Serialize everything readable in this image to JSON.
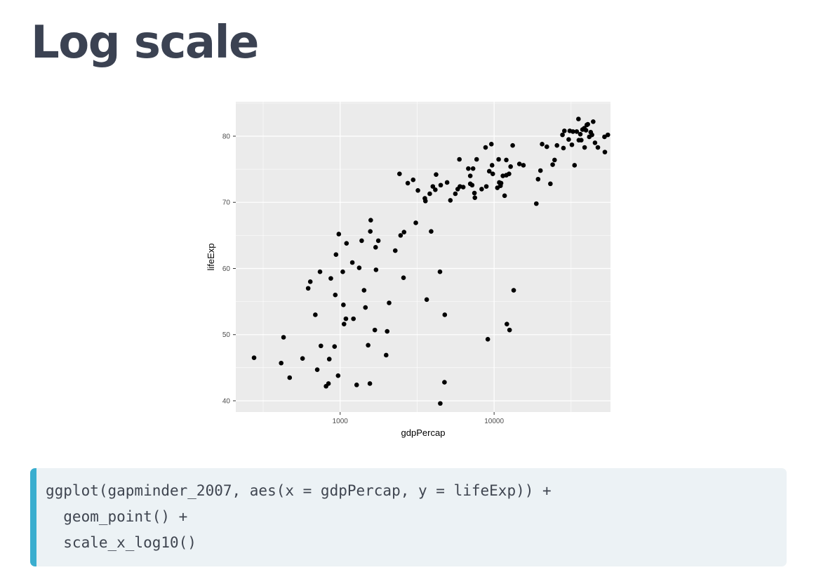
{
  "slide": {
    "title": "Log scale"
  },
  "code": {
    "lines": [
      "ggplot(gapminder_2007, aes(x = gdpPercap, y = lifeExp)) +",
      "  geom_point() +",
      "  scale_x_log10()"
    ]
  },
  "colors": {
    "panel_bg": "#ebebeb",
    "grid": "#ffffff",
    "point": "#000000",
    "code_accent": "#3aaecf",
    "code_bg": "#ecf2f5"
  },
  "chart_data": {
    "type": "scatter",
    "xlabel": "gdpPercap",
    "ylabel": "lifeExp",
    "x_scale": "log10",
    "xlim": [
      210,
      57000
    ],
    "ylim": [
      38.3,
      85.2
    ],
    "x_ticks": [
      1000,
      10000
    ],
    "x_tick_labels": [
      "1000",
      "10000"
    ],
    "y_ticks": [
      40,
      50,
      60,
      70,
      80
    ],
    "y_tick_labels": [
      "40",
      "50",
      "60",
      "70",
      "80"
    ],
    "grid": true,
    "legend": "none",
    "points": [
      [
        276,
        46.5
      ],
      [
        414,
        45.7
      ],
      [
        429,
        49.6
      ],
      [
        470,
        43.5
      ],
      [
        570,
        46.4
      ],
      [
        620,
        57.0
      ],
      [
        640,
        58.0
      ],
      [
        690,
        53.0
      ],
      [
        710,
        44.7
      ],
      [
        740,
        59.5
      ],
      [
        750,
        48.3
      ],
      [
        810,
        42.2
      ],
      [
        840,
        42.6
      ],
      [
        850,
        46.3
      ],
      [
        870,
        58.5
      ],
      [
        920,
        48.2
      ],
      [
        930,
        56.0
      ],
      [
        940,
        62.1
      ],
      [
        970,
        43.8
      ],
      [
        980,
        65.2
      ],
      [
        1040,
        59.5
      ],
      [
        1050,
        54.5
      ],
      [
        1060,
        51.6
      ],
      [
        1090,
        52.4
      ],
      [
        1100,
        63.8
      ],
      [
        1200,
        60.9
      ],
      [
        1220,
        52.4
      ],
      [
        1280,
        42.4
      ],
      [
        1330,
        60.1
      ],
      [
        1380,
        64.2
      ],
      [
        1430,
        56.7
      ],
      [
        1460,
        54.1
      ],
      [
        1520,
        48.4
      ],
      [
        1560,
        42.6
      ],
      [
        1570,
        65.6
      ],
      [
        1580,
        67.3
      ],
      [
        1680,
        50.7
      ],
      [
        1700,
        63.2
      ],
      [
        1710,
        59.8
      ],
      [
        1770,
        64.2
      ],
      [
        1990,
        46.9
      ],
      [
        2020,
        50.5
      ],
      [
        2080,
        54.8
      ],
      [
        2280,
        62.7
      ],
      [
        2430,
        74.3
      ],
      [
        2470,
        65.0
      ],
      [
        2580,
        58.6
      ],
      [
        2600,
        65.5
      ],
      [
        2750,
        72.9
      ],
      [
        2980,
        73.4
      ],
      [
        3100,
        66.9
      ],
      [
        3200,
        71.8
      ],
      [
        3550,
        70.6
      ],
      [
        3580,
        70.2
      ],
      [
        3650,
        55.3
      ],
      [
        3820,
        71.3
      ],
      [
        3900,
        65.6
      ],
      [
        4000,
        72.4
      ],
      [
        4150,
        71.9
      ],
      [
        4200,
        74.2
      ],
      [
        4450,
        59.5
      ],
      [
        4500,
        72.6
      ],
      [
        4470,
        39.6
      ],
      [
        4760,
        42.8
      ],
      [
        4780,
        53.0
      ],
      [
        4950,
        73.0
      ],
      [
        5200,
        70.3
      ],
      [
        5600,
        71.3
      ],
      [
        5800,
        72.0
      ],
      [
        6000,
        72.4
      ],
      [
        5950,
        76.5
      ],
      [
        6300,
        72.3
      ],
      [
        6800,
        75.1
      ],
      [
        7000,
        72.8
      ],
      [
        7000,
        74.0
      ],
      [
        7200,
        72.6
      ],
      [
        7300,
        75.1
      ],
      [
        7450,
        71.4
      ],
      [
        7500,
        70.7
      ],
      [
        7700,
        76.5
      ],
      [
        8300,
        72.0
      ],
      [
        8800,
        78.3
      ],
      [
        8900,
        72.4
      ],
      [
        9100,
        49.3
      ],
      [
        9300,
        74.7
      ],
      [
        9600,
        78.8
      ],
      [
        9800,
        74.3
      ],
      [
        9700,
        75.6
      ],
      [
        10500,
        72.2
      ],
      [
        10800,
        73.0
      ],
      [
        10700,
        76.5
      ],
      [
        11000,
        72.5
      ],
      [
        11100,
        72.9
      ],
      [
        11400,
        74.0
      ],
      [
        11700,
        71.0
      ],
      [
        12000,
        74.1
      ],
      [
        12000,
        76.4
      ],
      [
        12100,
        51.6
      ],
      [
        12500,
        74.3
      ],
      [
        12600,
        50.7
      ],
      [
        12800,
        75.4
      ],
      [
        13200,
        78.6
      ],
      [
        13400,
        56.7
      ],
      [
        14600,
        75.8
      ],
      [
        15500,
        75.6
      ],
      [
        18800,
        69.8
      ],
      [
        19300,
        73.5
      ],
      [
        20000,
        74.8
      ],
      [
        20500,
        78.8
      ],
      [
        22000,
        78.4
      ],
      [
        23200,
        72.8
      ],
      [
        24000,
        75.7
      ],
      [
        24700,
        76.4
      ],
      [
        25600,
        78.6
      ],
      [
        27800,
        80.2
      ],
      [
        28200,
        78.2
      ],
      [
        28600,
        80.8
      ],
      [
        30500,
        79.5
      ],
      [
        31000,
        80.8
      ],
      [
        32000,
        78.7
      ],
      [
        32500,
        80.7
      ],
      [
        33300,
        75.6
      ],
      [
        34400,
        80.7
      ],
      [
        35300,
        82.6
      ],
      [
        35500,
        79.4
      ],
      [
        36300,
        80.3
      ],
      [
        36800,
        79.4
      ],
      [
        37500,
        81.0
      ],
      [
        38500,
        81.2
      ],
      [
        38700,
        78.3
      ],
      [
        39500,
        80.9
      ],
      [
        40000,
        81.7
      ],
      [
        40600,
        81.8
      ],
      [
        41500,
        79.9
      ],
      [
        42400,
        80.6
      ],
      [
        43200,
        80.2
      ],
      [
        44000,
        82.2
      ],
      [
        45200,
        79.0
      ],
      [
        47200,
        78.3
      ],
      [
        52100,
        79.9
      ],
      [
        52400,
        77.6
      ],
      [
        54800,
        80.2
      ]
    ]
  }
}
